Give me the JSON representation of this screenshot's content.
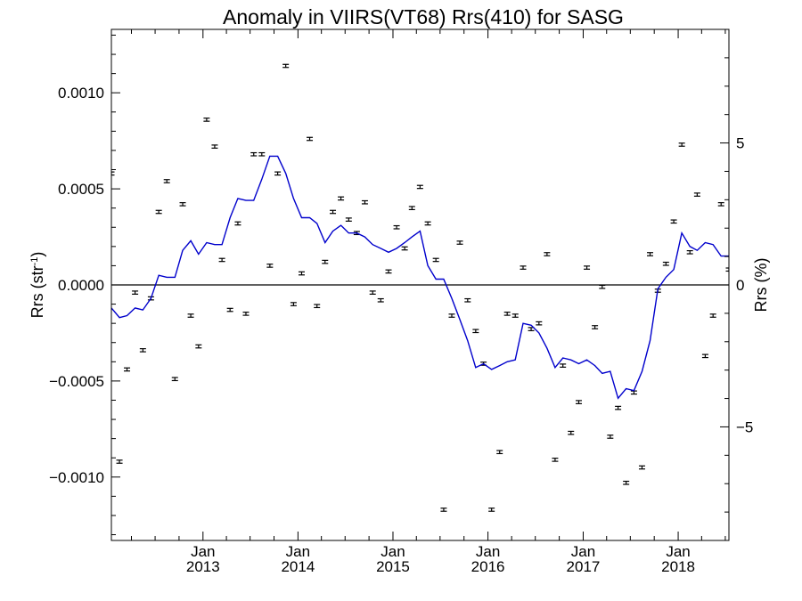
{
  "chart_data": {
    "type": "scatter",
    "title": "Anomaly in VIIRS(VT68) Rrs(410) for SASG",
    "ylabel": {
      "base": "Rrs (str",
      "sup": "-1",
      "close": ")"
    },
    "y2label": "Rrs (%)",
    "xlim": [
      "2012-01-15",
      "2018-07-15"
    ],
    "ylim": [
      -0.00133,
      0.00133
    ],
    "y2lim": [
      -9.0,
      9.0
    ],
    "colors": {
      "line": "#0000cc",
      "points": "#000000",
      "zero_line": "#000000"
    },
    "x_ticks": [
      {
        "date": "2013-01-01",
        "month": "Jan",
        "year": "2013"
      },
      {
        "date": "2014-01-01",
        "month": "Jan",
        "year": "2014"
      },
      {
        "date": "2015-01-01",
        "month": "Jan",
        "year": "2015"
      },
      {
        "date": "2016-01-01",
        "month": "Jan",
        "year": "2016"
      },
      {
        "date": "2017-01-01",
        "month": "Jan",
        "year": "2017"
      },
      {
        "date": "2018-01-01",
        "month": "Jan",
        "year": "2018"
      }
    ],
    "y_ticks": [
      {
        "value": 0.001,
        "label": "0.0010"
      },
      {
        "value": 0.0005,
        "label": "0.0005"
      },
      {
        "value": 0.0,
        "label": "0.0000"
      },
      {
        "value": -0.0005,
        "label": "−0.0005"
      },
      {
        "value": -0.001,
        "label": "−0.0010"
      }
    ],
    "y2_ticks": [
      {
        "value": 5,
        "label": "5"
      },
      {
        "value": 0,
        "label": "0"
      },
      {
        "value": -5,
        "label": "−5"
      }
    ],
    "series": [
      {
        "kind": "points_with_errorbars",
        "x": [
          "2012-01-15",
          "2012-02-15",
          "2012-03-15",
          "2012-04-15",
          "2012-05-15",
          "2012-06-15",
          "2012-07-15",
          "2012-08-15",
          "2012-09-15",
          "2012-10-15",
          "2012-11-15",
          "2012-12-15",
          "2013-01-15",
          "2013-02-15",
          "2013-03-15",
          "2013-04-15",
          "2013-05-15",
          "2013-06-15",
          "2013-07-15",
          "2013-08-15",
          "2013-09-15",
          "2013-10-15",
          "2013-11-15",
          "2013-12-15",
          "2014-01-15",
          "2014-02-15",
          "2014-03-15",
          "2014-04-15",
          "2014-05-15",
          "2014-06-15",
          "2014-07-15",
          "2014-08-15",
          "2014-09-15",
          "2014-10-15",
          "2014-11-15",
          "2014-12-15",
          "2015-01-15",
          "2015-02-15",
          "2015-03-15",
          "2015-04-15",
          "2015-05-15",
          "2015-06-15",
          "2015-07-15",
          "2015-08-15",
          "2015-09-15",
          "2015-10-15",
          "2015-11-15",
          "2015-12-15",
          "2016-01-15",
          "2016-02-15",
          "2016-03-15",
          "2016-04-15",
          "2016-05-15",
          "2016-06-15",
          "2016-07-15",
          "2016-08-15",
          "2016-09-15",
          "2016-10-15",
          "2016-11-15",
          "2016-12-15",
          "2017-01-15",
          "2017-02-15",
          "2017-03-15",
          "2017-04-15",
          "2017-05-15",
          "2017-06-15",
          "2017-07-15",
          "2017-08-15",
          "2017-09-15",
          "2017-10-15",
          "2017-11-15",
          "2017-12-15",
          "2018-01-15",
          "2018-02-15",
          "2018-03-15",
          "2018-04-15",
          "2018-05-15",
          "2018-06-15",
          "2018-07-15"
        ],
        "y": [
          0.00058,
          -0.00092,
          -0.00044,
          -4e-05,
          -0.00034,
          -7e-05,
          0.00038,
          0.00054,
          -0.00049,
          0.00042,
          -0.00016,
          -0.00032,
          0.00086,
          0.00072,
          0.00013,
          -0.00013,
          0.00032,
          -0.00015,
          0.00068,
          0.00068,
          0.0001,
          0.00058,
          0.00114,
          -0.0001,
          6e-05,
          0.00076,
          -0.00011,
          0.00012,
          0.00038,
          0.00045,
          0.00034,
          0.00027,
          0.00043,
          -4e-05,
          -8e-05,
          7e-05,
          0.0003,
          0.00019,
          0.0004,
          0.00051,
          0.00032,
          0.00013,
          -0.00117,
          -0.00016,
          0.00022,
          -8e-05,
          -0.00024,
          -0.00041,
          -0.00117,
          -0.00087,
          -0.00015,
          -0.00016,
          9e-05,
          -0.00023,
          -0.0002,
          0.00016,
          -0.00091,
          -0.00042,
          -0.00077,
          -0.00061,
          9e-05,
          -0.00022,
          -1e-05,
          -0.00079,
          -0.00064,
          -0.00103,
          -0.00056,
          -0.00095,
          0.00016,
          -3e-05,
          0.00011,
          0.00033,
          0.00073,
          0.00017,
          0.00047,
          -0.00037,
          -0.00016,
          0.00042,
          8e-05
        ],
        "err": 8e-06
      },
      {
        "kind": "line",
        "x": [
          "2012-01-15",
          "2012-02-15",
          "2012-03-15",
          "2012-04-15",
          "2012-05-15",
          "2012-06-15",
          "2012-07-15",
          "2012-08-15",
          "2012-09-15",
          "2012-10-15",
          "2012-11-15",
          "2012-12-15",
          "2013-01-15",
          "2013-02-15",
          "2013-03-15",
          "2013-04-15",
          "2013-05-15",
          "2013-06-15",
          "2013-07-15",
          "2013-08-15",
          "2013-09-15",
          "2013-10-15",
          "2013-11-15",
          "2013-12-15",
          "2014-01-15",
          "2014-02-15",
          "2014-03-15",
          "2014-04-15",
          "2014-05-15",
          "2014-06-15",
          "2014-07-15",
          "2014-08-15",
          "2014-09-15",
          "2014-10-15",
          "2014-11-15",
          "2014-12-15",
          "2015-01-15",
          "2015-02-15",
          "2015-03-15",
          "2015-04-15",
          "2015-05-15",
          "2015-06-15",
          "2015-07-15",
          "2015-08-15",
          "2015-09-15",
          "2015-10-15",
          "2015-11-15",
          "2015-12-15",
          "2016-01-15",
          "2016-02-15",
          "2016-03-15",
          "2016-04-15",
          "2016-05-15",
          "2016-06-15",
          "2016-07-15",
          "2016-08-15",
          "2016-09-15",
          "2016-10-15",
          "2016-11-15",
          "2016-12-15",
          "2017-01-15",
          "2017-02-15",
          "2017-03-15",
          "2017-04-15",
          "2017-05-15",
          "2017-06-15",
          "2017-07-15",
          "2017-08-15",
          "2017-09-15",
          "2017-10-15",
          "2017-11-15",
          "2017-12-15",
          "2018-01-15",
          "2018-02-15",
          "2018-03-15",
          "2018-04-15",
          "2018-05-15",
          "2018-06-15",
          "2018-07-15"
        ],
        "y": [
          -0.00012,
          -0.00017,
          -0.00016,
          -0.00012,
          -0.00013,
          -7e-05,
          5e-05,
          4e-05,
          4e-05,
          0.00018,
          0.00023,
          0.00016,
          0.00022,
          0.00021,
          0.00021,
          0.00035,
          0.00045,
          0.00044,
          0.00044,
          0.00055,
          0.00067,
          0.00067,
          0.00058,
          0.00045,
          0.00035,
          0.00035,
          0.00032,
          0.00022,
          0.00028,
          0.00031,
          0.00027,
          0.00027,
          0.00025,
          0.00021,
          0.00019,
          0.00017,
          0.00019,
          0.00022,
          0.00025,
          0.00028,
          0.0001,
          3e-05,
          3e-05,
          -7e-05,
          -0.00018,
          -0.00029,
          -0.00043,
          -0.00041,
          -0.00044,
          -0.00042,
          -0.0004,
          -0.00039,
          -0.0002,
          -0.00021,
          -0.00025,
          -0.00033,
          -0.00043,
          -0.00038,
          -0.00039,
          -0.00041,
          -0.00039,
          -0.00042,
          -0.00046,
          -0.00045,
          -0.00059,
          -0.00054,
          -0.00055,
          -0.00045,
          -0.00029,
          -2e-05,
          4e-05,
          8e-05,
          0.00027,
          0.0002,
          0.00018,
          0.00022,
          0.00021,
          0.00015,
          0.00015
        ]
      }
    ]
  }
}
